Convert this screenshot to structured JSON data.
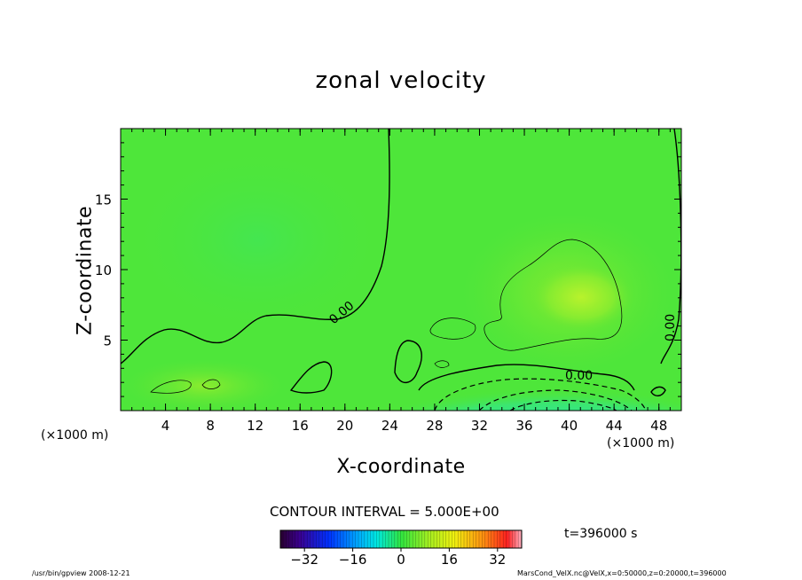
{
  "chart_data": {
    "type": "heatmap",
    "title": "zonal velocity",
    "xlabel": "X-coordinate",
    "ylabel": "Z-coordinate",
    "x_unit": "(×1000 m)",
    "xlim": [
      0,
      50
    ],
    "ylim": [
      0,
      20
    ],
    "x_ticks": [
      4,
      8,
      12,
      16,
      20,
      24,
      28,
      32,
      36,
      40,
      44,
      48
    ],
    "y_ticks": [
      5,
      10,
      15
    ],
    "contour_interval": "CONTOUR INTERVAL = 5.000E+00",
    "contour_labels": [
      "0.00",
      "0.00",
      "0.00"
    ],
    "colorbar": {
      "range": [
        -40,
        40
      ],
      "ticks": [
        -32,
        -16,
        0,
        16,
        32
      ]
    },
    "time_label": "t=396000 s",
    "colors": {
      "background_field": "#4ee63a",
      "positive_core": "#b6f02a",
      "negative_core": "#18e8d8"
    }
  },
  "footer": {
    "left": "/usr/bin/gpview  2008-12-21",
    "right": "MarsCond_VelX.nc@VelX,x=0:50000,z=0:20000,t=396000"
  }
}
